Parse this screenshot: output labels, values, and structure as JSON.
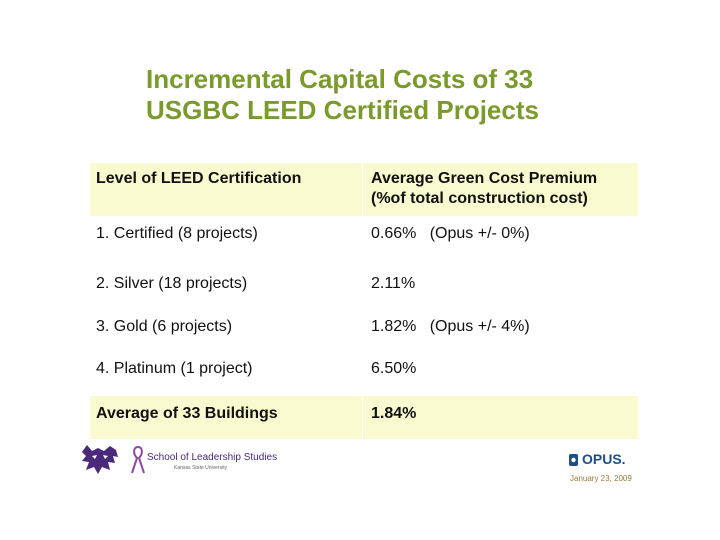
{
  "title": {
    "line1": "Incremental Capital Costs of 33",
    "line2": "USGBC LEED Certified Projects"
  },
  "table": {
    "headers": {
      "level": "Level of LEED Certification",
      "premium_line1": "Average Green Cost Premium",
      "premium_line2": "(%of total construction cost)"
    },
    "rows": [
      {
        "level": "1. Certified (8 projects)",
        "premium": "0.66%   (Opus +/- 0%)"
      },
      {
        "level": "2. Silver (18 projects)",
        "premium": "2.11%"
      },
      {
        "level": "3. Gold (6 projects)",
        "premium": "1.82%   (Opus +/- 4%)"
      },
      {
        "level": "4. Platinum (1 project)",
        "premium": "6.50%"
      }
    ],
    "footer": {
      "level": "Average of 33 Buildings",
      "premium": "1.84%"
    }
  },
  "footer": {
    "school_name": "School of Leadership Studies",
    "school_sub": "Kansas State University",
    "opus_name": "OPUS.",
    "date": "January 23, 2009"
  },
  "colors": {
    "title": "#7a9a2c",
    "shade": "#fafad0",
    "ksu_purple": "#4b2a7b",
    "opus_blue": "#1d4f86"
  }
}
